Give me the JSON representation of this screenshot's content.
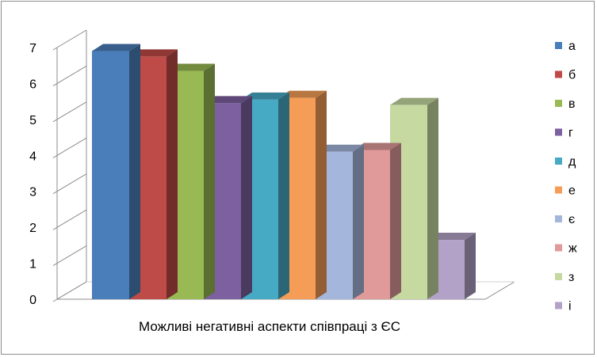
{
  "chart_data": {
    "type": "bar",
    "style": "3d-clustered",
    "xlabel": "Можливі  негативні  аспекти  співпраці  з  ЄС",
    "ylim": [
      0,
      7
    ],
    "yticks": [
      "0",
      "1",
      "2",
      "3",
      "4",
      "5",
      "6",
      "7"
    ],
    "grid": false,
    "legend_position": "right",
    "series": [
      {
        "name": "а",
        "value": 6.9,
        "color": "#4a7ebb"
      },
      {
        "name": "б",
        "value": 6.75,
        "color": "#be4b48"
      },
      {
        "name": "в",
        "value": 6.35,
        "color": "#98b954"
      },
      {
        "name": "г",
        "value": 5.45,
        "color": "#7d60a0"
      },
      {
        "name": "д",
        "value": 5.55,
        "color": "#46aac5"
      },
      {
        "name": "е",
        "value": 5.6,
        "color": "#f59d56"
      },
      {
        "name": "є",
        "value": 4.1,
        "color": "#a5b6dc"
      },
      {
        "name": "ж",
        "value": 4.15,
        "color": "#df9a99"
      },
      {
        "name": "з",
        "value": 5.4,
        "color": "#c6d9a0"
      },
      {
        "name": "і",
        "value": 1.65,
        "color": "#b3a2c7"
      }
    ]
  }
}
